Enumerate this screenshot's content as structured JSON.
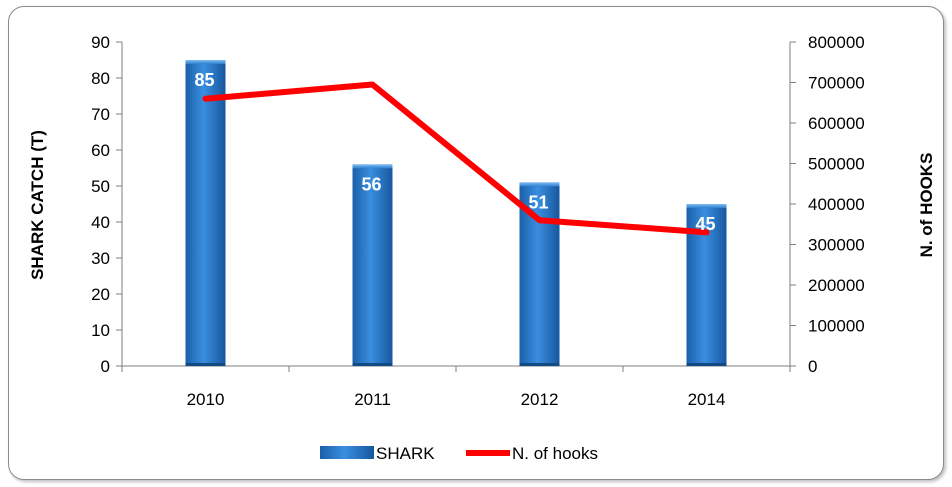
{
  "chart_data": {
    "type": "bar+line",
    "categories": [
      "2010",
      "2011",
      "2012",
      "2014"
    ],
    "series": [
      {
        "name": "SHARK",
        "type": "bar",
        "axis": "left",
        "values": [
          85,
          56,
          51,
          45
        ],
        "color": "#1f6fc1"
      },
      {
        "name": "N. of hooks",
        "type": "line",
        "axis": "right",
        "values": [
          660000,
          695000,
          360000,
          330000
        ],
        "color": "#ff0000"
      }
    ],
    "data_labels": [
      "85",
      "56",
      "51",
      "45"
    ],
    "ylabel_left": "SHARK CATCH (T)",
    "ylabel_right": "N. of HOOKS",
    "ylim_left": [
      0,
      90
    ],
    "ylim_right": [
      0,
      800000
    ],
    "yticks_left": [
      "0",
      "10",
      "20",
      "30",
      "40",
      "50",
      "60",
      "70",
      "80",
      "90"
    ],
    "yticks_right": [
      "0",
      "100000",
      "200000",
      "300000",
      "400000",
      "500000",
      "600000",
      "700000",
      "800000"
    ],
    "grid": false,
    "legend": {
      "position": "bottom",
      "entries": [
        "SHARK",
        "N. of hooks"
      ]
    }
  }
}
